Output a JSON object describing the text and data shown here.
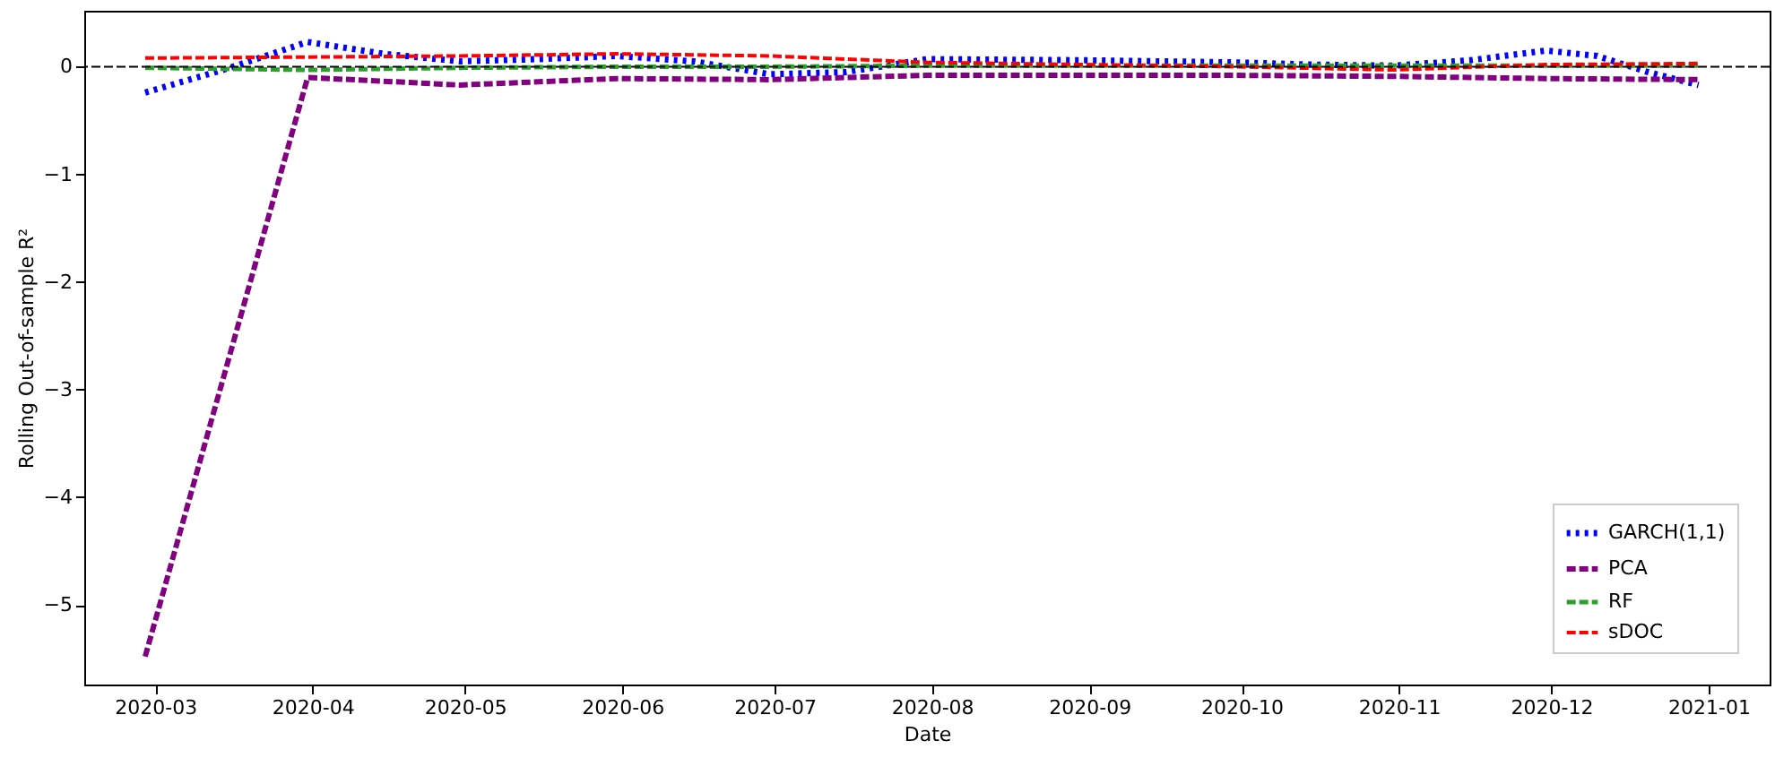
{
  "chart_data": {
    "type": "line",
    "xlabel": "Date",
    "ylabel": "Rolling Out-of-sample R²",
    "xlim": [
      "2020-02-16",
      "2021-01-13"
    ],
    "xticks": [
      "2020-03",
      "2020-04",
      "2020-05",
      "2020-06",
      "2020-07",
      "2020-08",
      "2020-09",
      "2020-10",
      "2020-11",
      "2020-12",
      "2021-01"
    ],
    "ylim": [
      -5.74,
      0.52
    ],
    "yticks": [
      {
        "value": -5,
        "label": "−5"
      },
      {
        "value": -4,
        "label": "−4"
      },
      {
        "value": -3,
        "label": "−3"
      },
      {
        "value": -2,
        "label": "−2"
      },
      {
        "value": -1,
        "label": "−1"
      },
      0
    ],
    "grid": false,
    "legend": "bottom right",
    "ref_lines": [
      {
        "axis": "y",
        "value": 0,
        "color": "#000000",
        "line_style": "dashed"
      }
    ],
    "series": [
      {
        "name": "GARCH(1,1)",
        "color": "#0000ff",
        "line_style": "dotted",
        "x": [
          "2020-02-28",
          "2020-03-15",
          "2020-03-31",
          "2020-04-15",
          "2020-04-30",
          "2020-05-15",
          "2020-05-31",
          "2020-06-15",
          "2020-06-30",
          "2020-07-15",
          "2020-07-31",
          "2020-08-31",
          "2020-09-30",
          "2020-10-15",
          "2020-10-31",
          "2020-11-15",
          "2020-11-30",
          "2020-12-10",
          "2020-12-20",
          "2020-12-30"
        ],
        "values": [
          -0.24,
          -0.02,
          0.23,
          0.12,
          0.05,
          0.07,
          0.1,
          0.05,
          -0.07,
          -0.05,
          0.07,
          0.06,
          0.04,
          0.02,
          0.01,
          0.06,
          0.15,
          0.1,
          -0.05,
          -0.17
        ]
      },
      {
        "name": "PCA",
        "color": "#800080",
        "line_style": "dashed",
        "x": [
          "2020-02-28",
          "2020-03-31",
          "2020-04-30",
          "2020-05-31",
          "2020-06-30",
          "2020-07-31",
          "2020-08-31",
          "2020-09-30",
          "2020-10-31",
          "2020-11-30",
          "2020-12-30"
        ],
        "values": [
          -5.48,
          -0.1,
          -0.17,
          -0.11,
          -0.12,
          -0.08,
          -0.08,
          -0.08,
          -0.09,
          -0.11,
          -0.12
        ]
      },
      {
        "name": "RF",
        "color": "#2ca02c",
        "line_style": "dashed",
        "x": [
          "2020-02-28",
          "2020-03-31",
          "2020-04-30",
          "2020-05-31",
          "2020-06-30",
          "2020-07-31",
          "2020-08-31",
          "2020-09-30",
          "2020-10-31",
          "2020-11-30",
          "2020-12-30"
        ],
        "values": [
          -0.01,
          -0.03,
          -0.01,
          0.0,
          0.0,
          0.01,
          0.01,
          0.01,
          0.01,
          0.01,
          0.01
        ]
      },
      {
        "name": "sDOC",
        "color": "#ff0000",
        "line_style": "dashed",
        "x": [
          "2020-02-28",
          "2020-03-31",
          "2020-04-30",
          "2020-05-31",
          "2020-06-30",
          "2020-07-31",
          "2020-08-31",
          "2020-09-30",
          "2020-10-31",
          "2020-11-30",
          "2020-12-30"
        ],
        "values": [
          0.08,
          0.09,
          0.1,
          0.12,
          0.1,
          0.04,
          0.02,
          0.0,
          -0.03,
          0.02,
          0.03
        ]
      }
    ]
  }
}
